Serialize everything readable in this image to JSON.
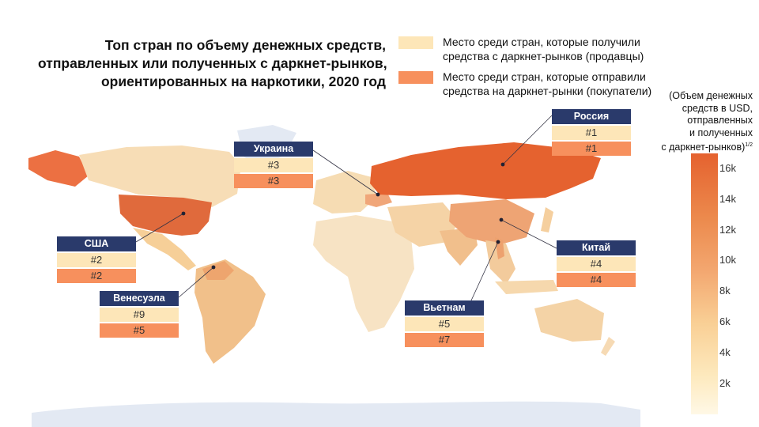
{
  "title_lines": [
    "Топ стран по объему денежных средств,",
    "отправленных или полученных с даркнет-рынков,",
    "ориентированных на наркотики, 2020 год"
  ],
  "legend": {
    "sellers_color": "#fde6b8",
    "sellers_label": "Место среди стран, которые получили средства с даркнет-рынков (продавцы)",
    "buyers_color": "#f7905d",
    "buyers_label": "Место среди стран, которые отправили средства на даркнет-рынки (покупатели)"
  },
  "countries": {
    "russia": {
      "name": "Россия",
      "seller_rank": "#1",
      "buyer_rank": "#1"
    },
    "ukraine": {
      "name": "Украина",
      "seller_rank": "#3",
      "buyer_rank": "#3"
    },
    "usa": {
      "name": "США",
      "seller_rank": "#2",
      "buyer_rank": "#2"
    },
    "venezuela": {
      "name": "Венесуэла",
      "seller_rank": "#9",
      "buyer_rank": "#5"
    },
    "china": {
      "name": "Китай",
      "seller_rank": "#4",
      "buyer_rank": "#4"
    },
    "vietnam": {
      "name": "Вьетнам",
      "seller_rank": "#5",
      "buyer_rank": "#7"
    }
  },
  "colorbar": {
    "title_lines": [
      "(Объем денежных",
      "средств в USD,",
      "отправленных",
      "и полученных",
      "с даркнет-рынков)"
    ],
    "superscript": "1/2",
    "ticks": [
      "16k",
      "14k",
      "12k",
      "10k",
      "8k",
      "6k",
      "4k",
      "2k"
    ],
    "min_color": "#fff8e6",
    "max_color": "#e5622f"
  }
}
